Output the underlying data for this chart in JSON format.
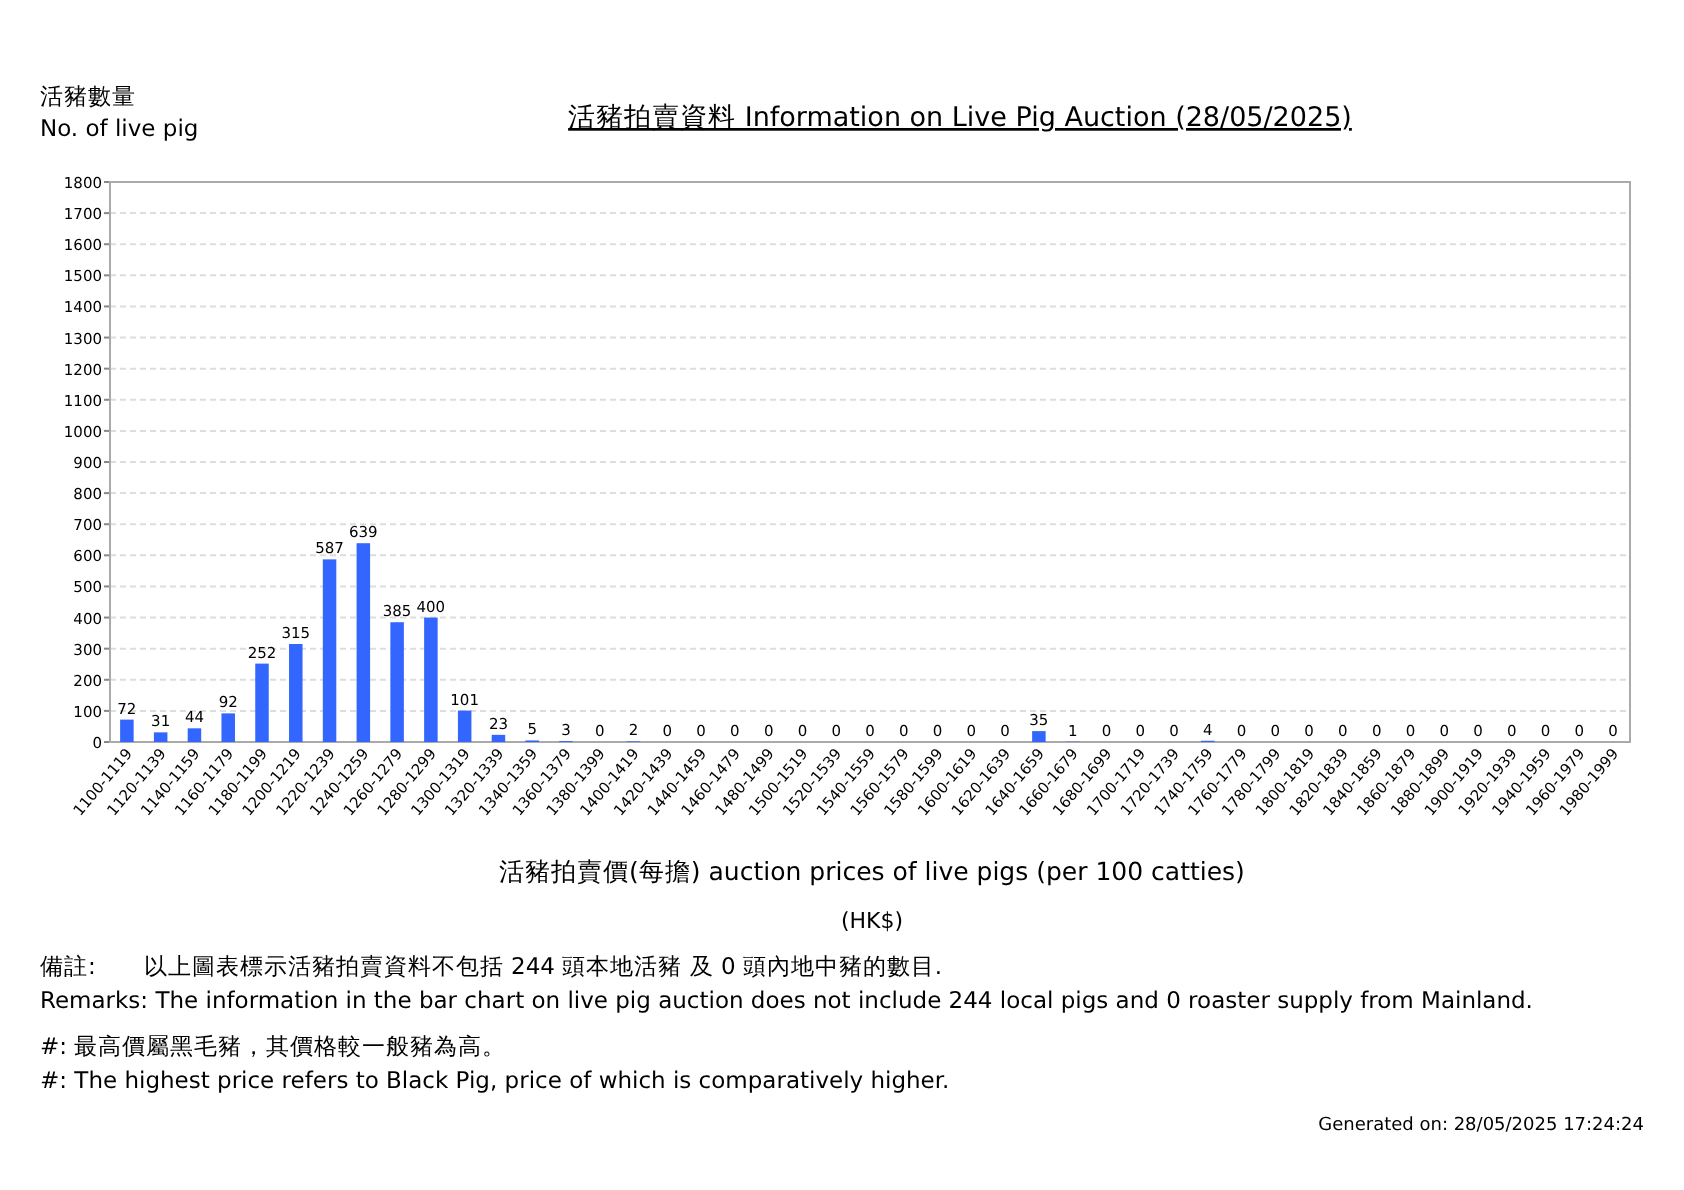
{
  "chart_data": {
    "type": "bar",
    "title": "活豬拍賣資料 Information on Live Pig Auction (28/05/2025)",
    "ylabel": "活豬數量\nNo. of live pig",
    "xlabel": "活豬拍賣價(每擔) auction prices of live pigs (per 100 catties)\n(HK$)",
    "categories": [
      "1100-1119",
      "1120-1139",
      "1140-1159",
      "1160-1179",
      "1180-1199",
      "1200-1219",
      "1220-1239",
      "1240-1259",
      "1260-1279",
      "1280-1299",
      "1300-1319",
      "1320-1339",
      "1340-1359",
      "1360-1379",
      "1380-1399",
      "1400-1419",
      "1420-1439",
      "1440-1459",
      "1460-1479",
      "1480-1499",
      "1500-1519",
      "1520-1539",
      "1540-1559",
      "1560-1579",
      "1580-1599",
      "1600-1619",
      "1620-1639",
      "1640-1659",
      "1660-1679",
      "1680-1699",
      "1700-1719",
      "1720-1739",
      "1740-1759",
      "1760-1779",
      "1780-1799",
      "1800-1819",
      "1820-1839",
      "1840-1859",
      "1860-1879",
      "1880-1899",
      "1900-1919",
      "1920-1939",
      "1940-1959",
      "1960-1979",
      "1980-1999"
    ],
    "values": [
      72,
      31,
      44,
      92,
      252,
      315,
      587,
      639,
      385,
      400,
      101,
      23,
      5,
      3,
      0,
      2,
      0,
      0,
      0,
      0,
      0,
      0,
      0,
      0,
      0,
      0,
      0,
      35,
      1,
      0,
      0,
      0,
      4,
      0,
      0,
      0,
      0,
      0,
      0,
      0,
      0,
      0,
      0,
      0,
      0
    ],
    "color": "#3366ff",
    "data_labels": true,
    "grid": "y",
    "ylim": [
      0,
      1800
    ],
    "yticks": [
      0,
      100,
      200,
      300,
      400,
      500,
      600,
      700,
      800,
      900,
      1000,
      1100,
      1200,
      1300,
      1400,
      1500,
      1600,
      1700,
      1800
    ],
    "annotations": [
      "備註:　　以上圖表標示活豬拍賣資料不包括 244 頭本地活豬 及 0 頭內地中豬的數目.",
      "Remarks: The information in the bar chart on live pig auction does not include 244 local pigs and 0 roaster supply from Mainland.",
      "#: 最高價屬黑毛豬，其價格較一般豬為高。",
      "#: The highest price refers to Black Pig, price of which is comparatively higher.",
      "Generated on: 28/05/2025 17:24:24"
    ]
  }
}
